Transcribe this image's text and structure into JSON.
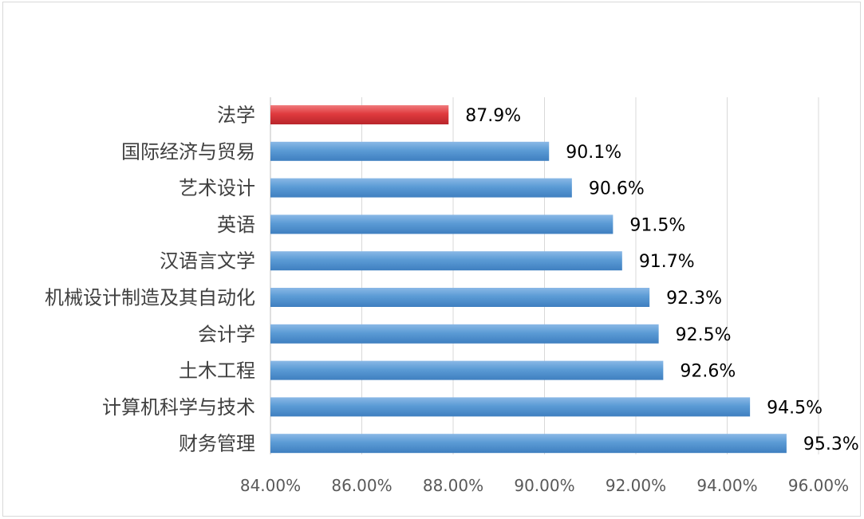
{
  "chart_data": {
    "type": "bar",
    "orientation": "horizontal",
    "categories": [
      "法学",
      "国际经济与贸易",
      "艺术设计",
      "英语",
      "汉语言文学",
      "机械设计制造及其自动化",
      "会计学",
      "土木工程",
      "计算机科学与技术",
      "财务管理"
    ],
    "values": [
      87.9,
      90.1,
      90.6,
      91.5,
      91.7,
      92.3,
      92.5,
      92.6,
      94.5,
      95.3
    ],
    "value_labels": [
      "87.9%",
      "90.1%",
      "90.6%",
      "91.5%",
      "91.7%",
      "92.3%",
      "92.5%",
      "92.6%",
      "94.5%",
      "95.3%"
    ],
    "xlim": [
      84,
      96
    ],
    "x_ticks": [
      84,
      86,
      88,
      90,
      92,
      94,
      96
    ],
    "x_tick_labels": [
      "84.00%",
      "86.00%",
      "88.00%",
      "90.00%",
      "92.00%",
      "94.00%",
      "96.00%"
    ],
    "highlight_index": 0,
    "colors": {
      "bar": "#5b9bd5",
      "bar_dark": "#3f7fc0",
      "highlight": "#e03a3e",
      "highlight_dark": "#b8262b",
      "grid": "#d9d9d9",
      "axis": "#bfbfbf"
    },
    "grid": true,
    "legend": "none",
    "title": "",
    "xlabel": "",
    "ylabel": ""
  }
}
